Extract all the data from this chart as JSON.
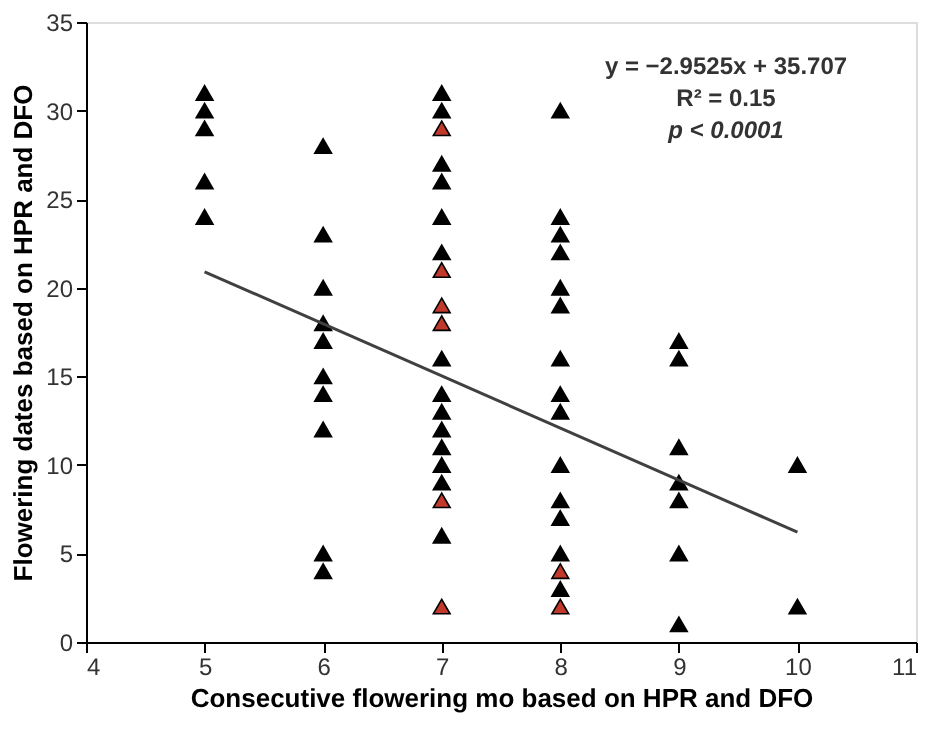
{
  "chart_data": {
    "type": "scatter",
    "xlabel": "Consecutive flowering mo based on HPR and DFO",
    "ylabel": "Flowering dates based on HPR and DFO",
    "series": [
      {
        "color": "#000000",
        "x": [
          5,
          5,
          5,
          5,
          5,
          6,
          6,
          6,
          6,
          6,
          6,
          6,
          6,
          6,
          6,
          7,
          7,
          7,
          7,
          7,
          7,
          7,
          7,
          7,
          7,
          7,
          7,
          7,
          7,
          8,
          8,
          8,
          8,
          8,
          8,
          8,
          8,
          8,
          8,
          8,
          8,
          8,
          8,
          9,
          9,
          9,
          9,
          9,
          9,
          9,
          10,
          10
        ],
        "values": [
          31,
          30,
          29,
          26,
          24,
          28,
          23,
          20,
          18,
          17,
          15,
          14,
          12,
          5,
          4,
          31,
          30,
          27,
          26,
          24,
          22,
          16,
          14,
          13,
          12,
          11,
          10,
          9,
          6,
          30,
          24,
          23,
          22,
          20,
          19,
          16,
          14,
          13,
          10,
          8,
          7,
          5,
          3,
          17,
          16,
          11,
          9,
          8,
          5,
          1,
          10,
          2
        ]
      },
      {
        "color": "#c0392b",
        "x": [
          7,
          7,
          7,
          7,
          7,
          7,
          8,
          8
        ],
        "values": [
          29,
          21,
          19,
          18,
          8,
          2,
          4,
          2
        ]
      },
      {
        "type": "line",
        "marker": "none",
        "color": "#404040",
        "x": [
          5,
          10
        ],
        "values": [
          20.9,
          6.2
        ]
      }
    ],
    "annotations": [
      "y = −2.9525x + 35.707",
      "R² = 0.15",
      "p < 0.0001"
    ],
    "xlim": [
      4,
      11
    ],
    "xticks": [
      4,
      5,
      6,
      7,
      8,
      9,
      10,
      11
    ],
    "ylim": [
      0,
      35
    ],
    "yticks": [
      0,
      5,
      10,
      15,
      20,
      25,
      30,
      35
    ],
    "marker": "triangle",
    "grid": false
  }
}
